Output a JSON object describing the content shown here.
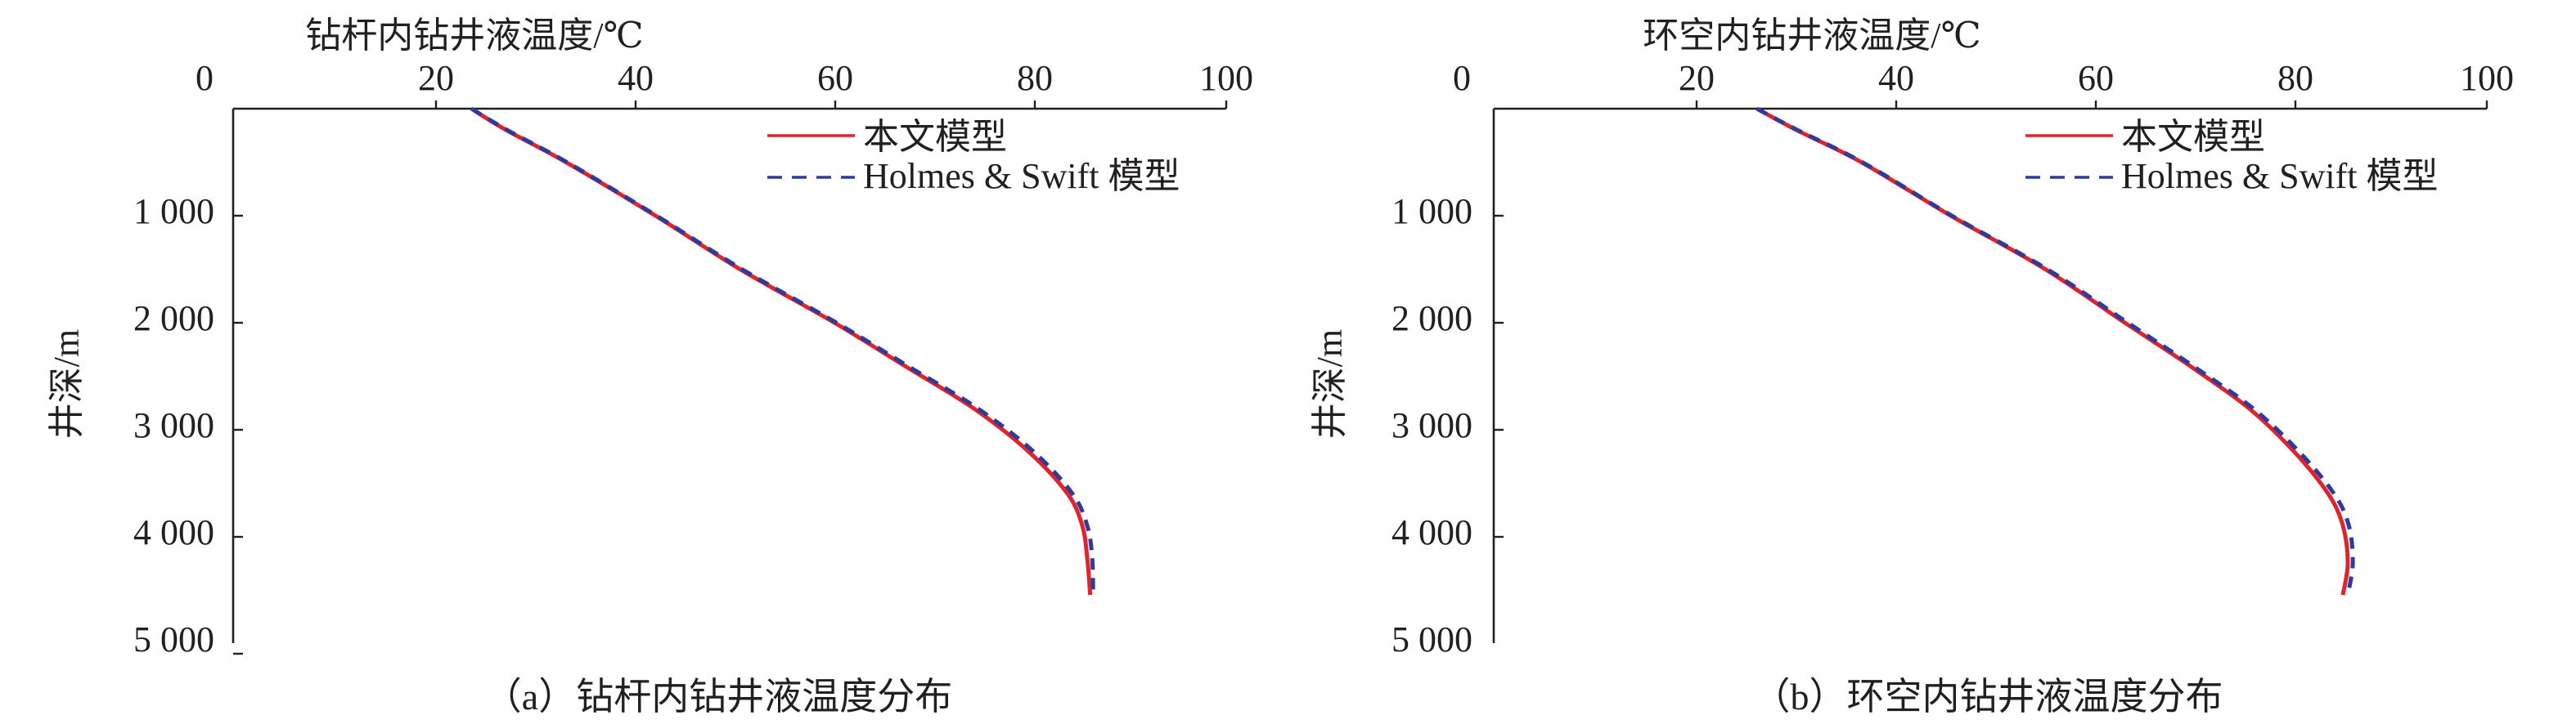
{
  "chart_data": [
    {
      "type": "line",
      "title": "钻杆内钻井液温度/℃",
      "xlabel": "钻杆内钻井液温度/℃",
      "ylabel": "井深/m",
      "caption": "（a）钻杆内钻井液温度分布",
      "xlim": [
        0,
        100
      ],
      "ylim": [
        0,
        5000
      ],
      "y_inverted": true,
      "x_axis_position": "top",
      "x_ticks": [
        "0",
        "20",
        "40",
        "60",
        "80",
        "100"
      ],
      "y_ticks": [
        "0",
        "1 000",
        "2 000",
        "3 000",
        "4 000",
        "5 000"
      ],
      "legend_position": "top-right",
      "series": [
        {
          "name": "本文模型",
          "color": "#e0242b",
          "dash": "solid",
          "temperature": [
            24.0,
            27.5,
            33.5,
            42.5,
            51.0,
            60.5,
            67.5,
            74.5,
            80.0,
            84.0,
            85.5,
            86.0,
            86.3
          ],
          "depth": [
            0,
            200,
            500,
            1000,
            1500,
            2000,
            2400,
            2800,
            3200,
            3600,
            3900,
            4200,
            4550
          ]
        },
        {
          "name": "Holmes & Swift 模型",
          "color": "#2e3a9e",
          "dash": "dashed",
          "temperature": [
            24.0,
            27.6,
            33.6,
            42.6,
            51.2,
            60.7,
            67.8,
            74.9,
            80.5,
            84.5,
            86.0,
            86.5,
            86.6
          ],
          "depth": [
            0,
            200,
            500,
            1000,
            1500,
            2000,
            2400,
            2800,
            3200,
            3600,
            3900,
            4200,
            4550
          ]
        }
      ]
    },
    {
      "type": "line",
      "title": "环空内钻井液温度/℃",
      "xlabel": "环空内钻井液温度/℃",
      "ylabel": "井深/m",
      "caption": "（b）环空内钻井液温度分布",
      "xlim": [
        0,
        100
      ],
      "ylim": [
        0,
        5000
      ],
      "y_inverted": true,
      "x_axis_position": "top",
      "x_ticks": [
        "0",
        "20",
        "40",
        "60",
        "80",
        "100"
      ],
      "y_ticks": [
        "0",
        "1 000",
        "2 000",
        "3 000",
        "4 000",
        "5 000"
      ],
      "legend_position": "top-right",
      "series": [
        {
          "name": "本文模型",
          "color": "#e0242b",
          "dash": "solid",
          "temperature": [
            26.5,
            30.5,
            37.0,
            46.0,
            55.5,
            63.5,
            70.0,
            76.0,
            80.5,
            84.0,
            85.5,
            86.0,
            85.5
          ],
          "depth": [
            0,
            200,
            500,
            1000,
            1500,
            2000,
            2400,
            2800,
            3200,
            3600,
            3900,
            4250,
            4550
          ]
        },
        {
          "name": "Holmes & Swift 模型",
          "color": "#2e3a9e",
          "dash": "dashed",
          "temperature": [
            26.5,
            30.6,
            37.1,
            46.1,
            55.7,
            63.8,
            70.3,
            76.4,
            81.0,
            84.6,
            86.1,
            86.5,
            86.0
          ],
          "depth": [
            0,
            200,
            500,
            1000,
            1500,
            2000,
            2400,
            2800,
            3200,
            3600,
            3900,
            4250,
            4550
          ]
        }
      ]
    }
  ]
}
